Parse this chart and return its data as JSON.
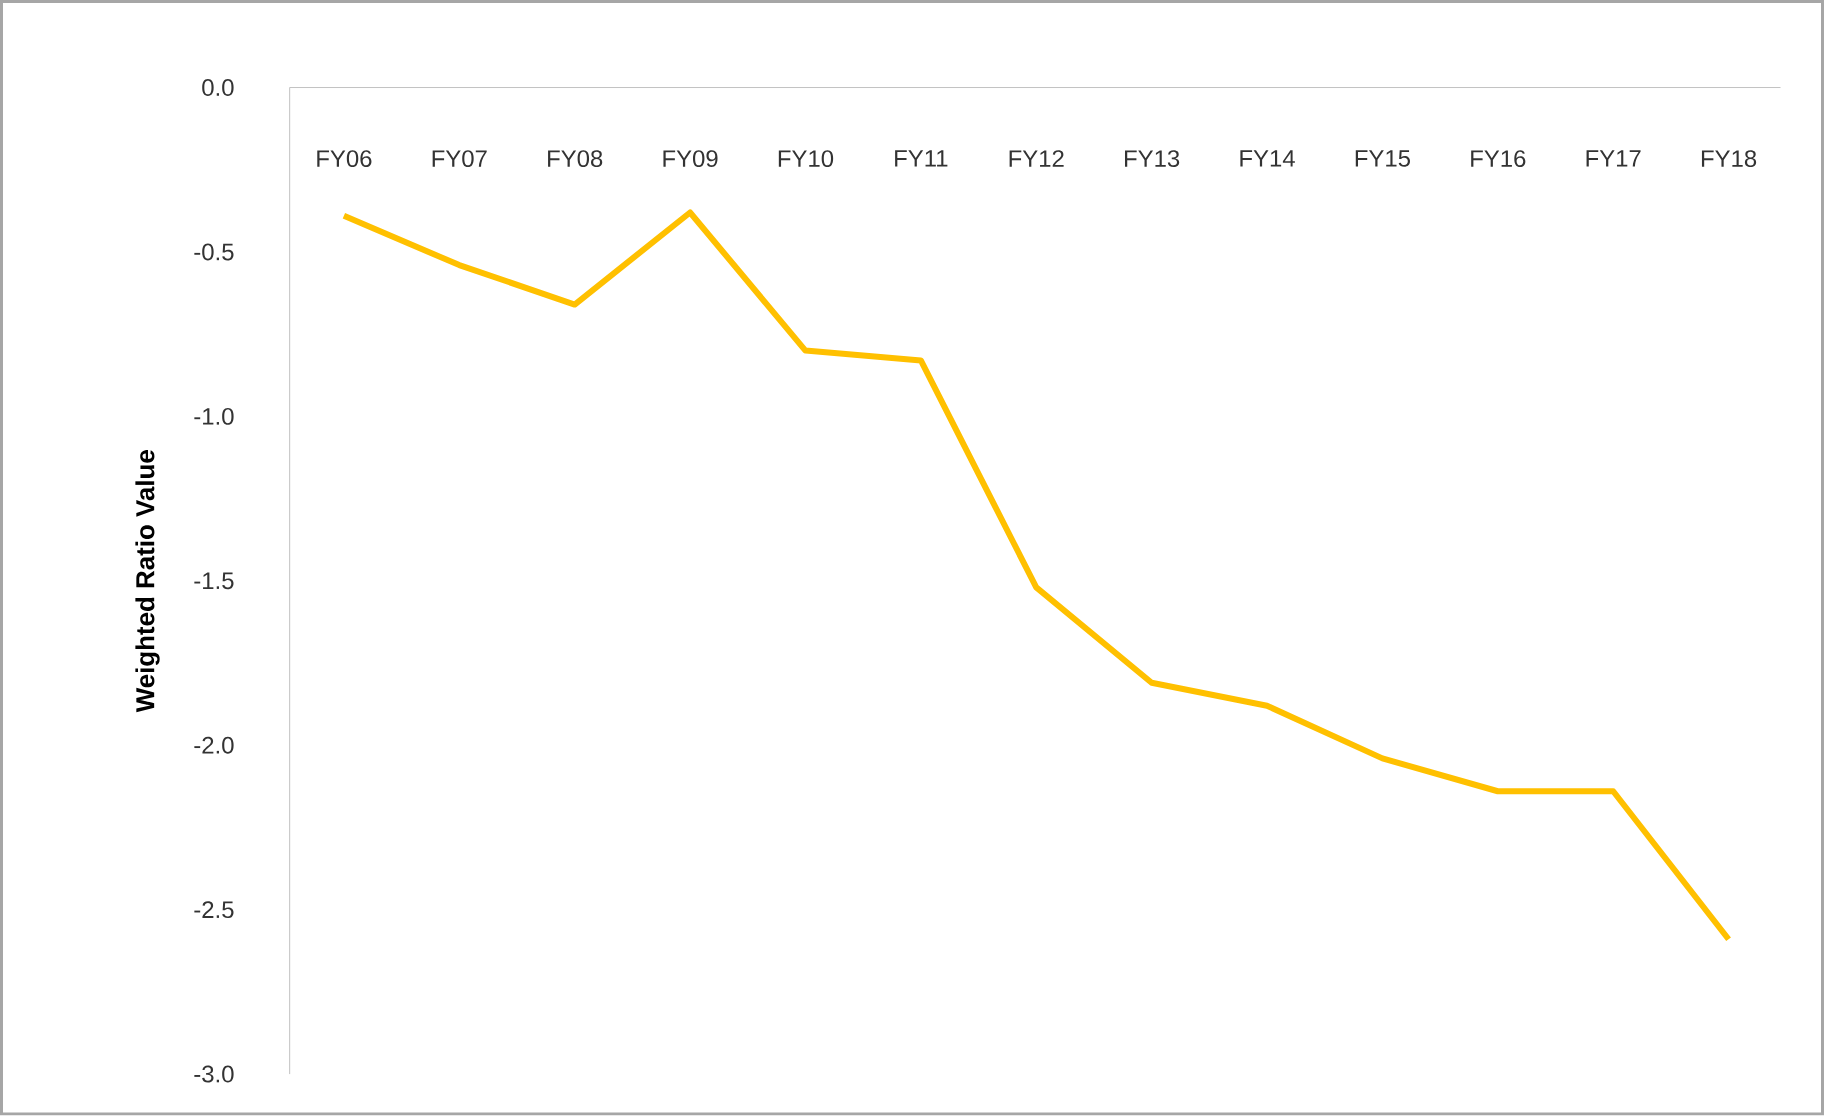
{
  "chart_data": {
    "type": "line",
    "ylabel": "Weighted Ratio Value",
    "categories": [
      "FY06",
      "FY07",
      "FY08",
      "FY09",
      "FY10",
      "FY11",
      "FY12",
      "FY13",
      "FY14",
      "FY15",
      "FY16",
      "FY17",
      "FY18"
    ],
    "values": [
      -0.39,
      -0.54,
      -0.66,
      -0.38,
      -0.8,
      -0.83,
      -1.52,
      -1.81,
      -1.88,
      -2.04,
      -2.14,
      -2.14,
      -2.59
    ],
    "color": "#ffc000",
    "marker": "none",
    "line_style": "solid",
    "grid": false,
    "ylim": [
      -3,
      0
    ],
    "yticks": [
      {
        "value": 0,
        "label": "0.0"
      },
      {
        "value": -0.5,
        "label": "-0.5"
      },
      {
        "value": -1,
        "label": "-1.0"
      },
      {
        "value": -1.5,
        "label": "-1.5"
      },
      {
        "value": -2,
        "label": "-2.0"
      },
      {
        "value": -2.5,
        "label": "-2.5"
      },
      {
        "value": -3,
        "label": "-3.0"
      }
    ]
  }
}
